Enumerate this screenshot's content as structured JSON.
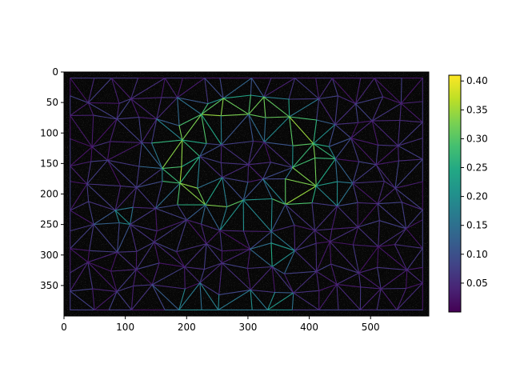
{
  "chart_data": {
    "type": "heatmap",
    "title": "",
    "xlabel": "",
    "ylabel": "",
    "xlim": [
      0,
      595
    ],
    "ylim": [
      400,
      0
    ],
    "x_ticks": [
      0,
      100,
      200,
      300,
      400,
      500
    ],
    "y_ticks": [
      0,
      50,
      100,
      150,
      200,
      250,
      300,
      350
    ],
    "x_tick_labels": [
      "0",
      "100",
      "200",
      "300",
      "400",
      "500"
    ],
    "y_tick_labels": [
      "0",
      "50",
      "100",
      "150",
      "200",
      "250",
      "300",
      "350"
    ],
    "background": "dark grayscale image",
    "colormap": "viridis",
    "colorbar": {
      "range": [
        0.0,
        0.41
      ],
      "ticks": [
        0.05,
        0.1,
        0.15,
        0.2,
        0.25,
        0.3,
        0.35,
        0.4
      ],
      "tick_labels": [
        "0.05",
        "0.10",
        "0.15",
        "0.20",
        "0.25",
        "0.30",
        "0.35",
        "0.40"
      ]
    },
    "mesh": {
      "x_range": [
        10,
        585
      ],
      "y_range": [
        10,
        390
      ],
      "high_value_features": [
        {
          "shape": "ring",
          "center": [
            295,
            145
          ],
          "radius_x": 110,
          "radius_y": 85,
          "value": 0.33
        },
        {
          "shape": "spot",
          "center": [
            345,
            295
          ],
          "value": 0.25
        },
        {
          "shape": "spot",
          "center": [
            95,
            245
          ],
          "value": 0.22
        },
        {
          "shape": "spot",
          "center": [
            440,
            185
          ],
          "value": 0.27
        },
        {
          "shape": "arc",
          "center": [
            270,
            380
          ],
          "value": 0.2
        }
      ],
      "edge_value_baseline": 0.05
    }
  }
}
